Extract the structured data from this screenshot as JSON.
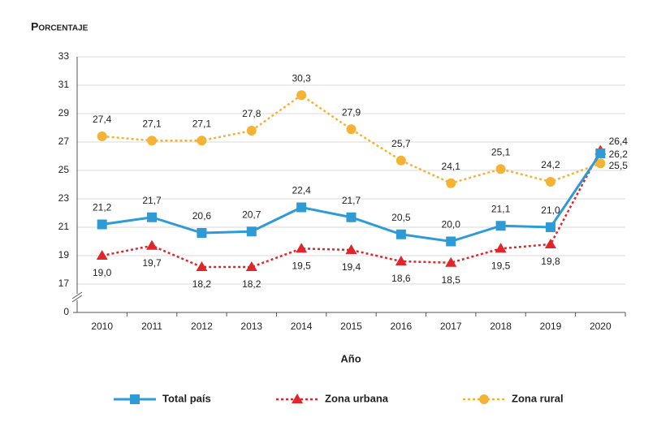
{
  "chart_data": {
    "type": "line",
    "y_label": "Porcentaje",
    "x_label": "Año",
    "categories": [
      "2010",
      "2011",
      "2012",
      "2013",
      "2014",
      "2015",
      "2016",
      "2017",
      "2018",
      "2019",
      "2020"
    ],
    "series": [
      {
        "name": "Total país",
        "color": "#2e9bd6",
        "marker": "square",
        "dash": "solid",
        "values": [
          21.2,
          21.7,
          20.6,
          20.7,
          22.4,
          21.7,
          20.5,
          20.0,
          21.1,
          21.0,
          26.2
        ],
        "value_labels": [
          "21,2",
          "21,7",
          "20,6",
          "20,7",
          "22,4",
          "21,7",
          "20,5",
          "20,0",
          "21,1",
          "21,0",
          "26,2"
        ]
      },
      {
        "name": "Zona urbana",
        "color": "#e0262b",
        "marker": "triangle",
        "dash": "dotted",
        "values": [
          19.0,
          19.7,
          18.2,
          18.2,
          19.5,
          19.4,
          18.6,
          18.5,
          19.5,
          19.8,
          26.4
        ],
        "value_labels": [
          "19,0",
          "19,7",
          "18,2",
          "18,2",
          "19,5",
          "19,4",
          "18,6",
          "18,5",
          "19,5",
          "19,8",
          "26,4"
        ]
      },
      {
        "name": "Zona rural",
        "color": "#f5b335",
        "marker": "circle",
        "dash": "dotted",
        "values": [
          27.4,
          27.1,
          27.1,
          27.8,
          30.3,
          27.9,
          25.7,
          24.1,
          25.1,
          24.2,
          25.5
        ],
        "value_labels": [
          "27,4",
          "27,1",
          "27,1",
          "27,8",
          "30,3",
          "27,9",
          "25,7",
          "24,1",
          "25,1",
          "24,2",
          "25,5"
        ]
      }
    ],
    "ylim": [
      15,
      33
    ],
    "yticks": [
      0,
      17,
      19,
      21,
      23,
      25,
      27,
      29,
      31,
      33
    ],
    "axis_break": true,
    "grid": true,
    "legend": "bottom"
  }
}
